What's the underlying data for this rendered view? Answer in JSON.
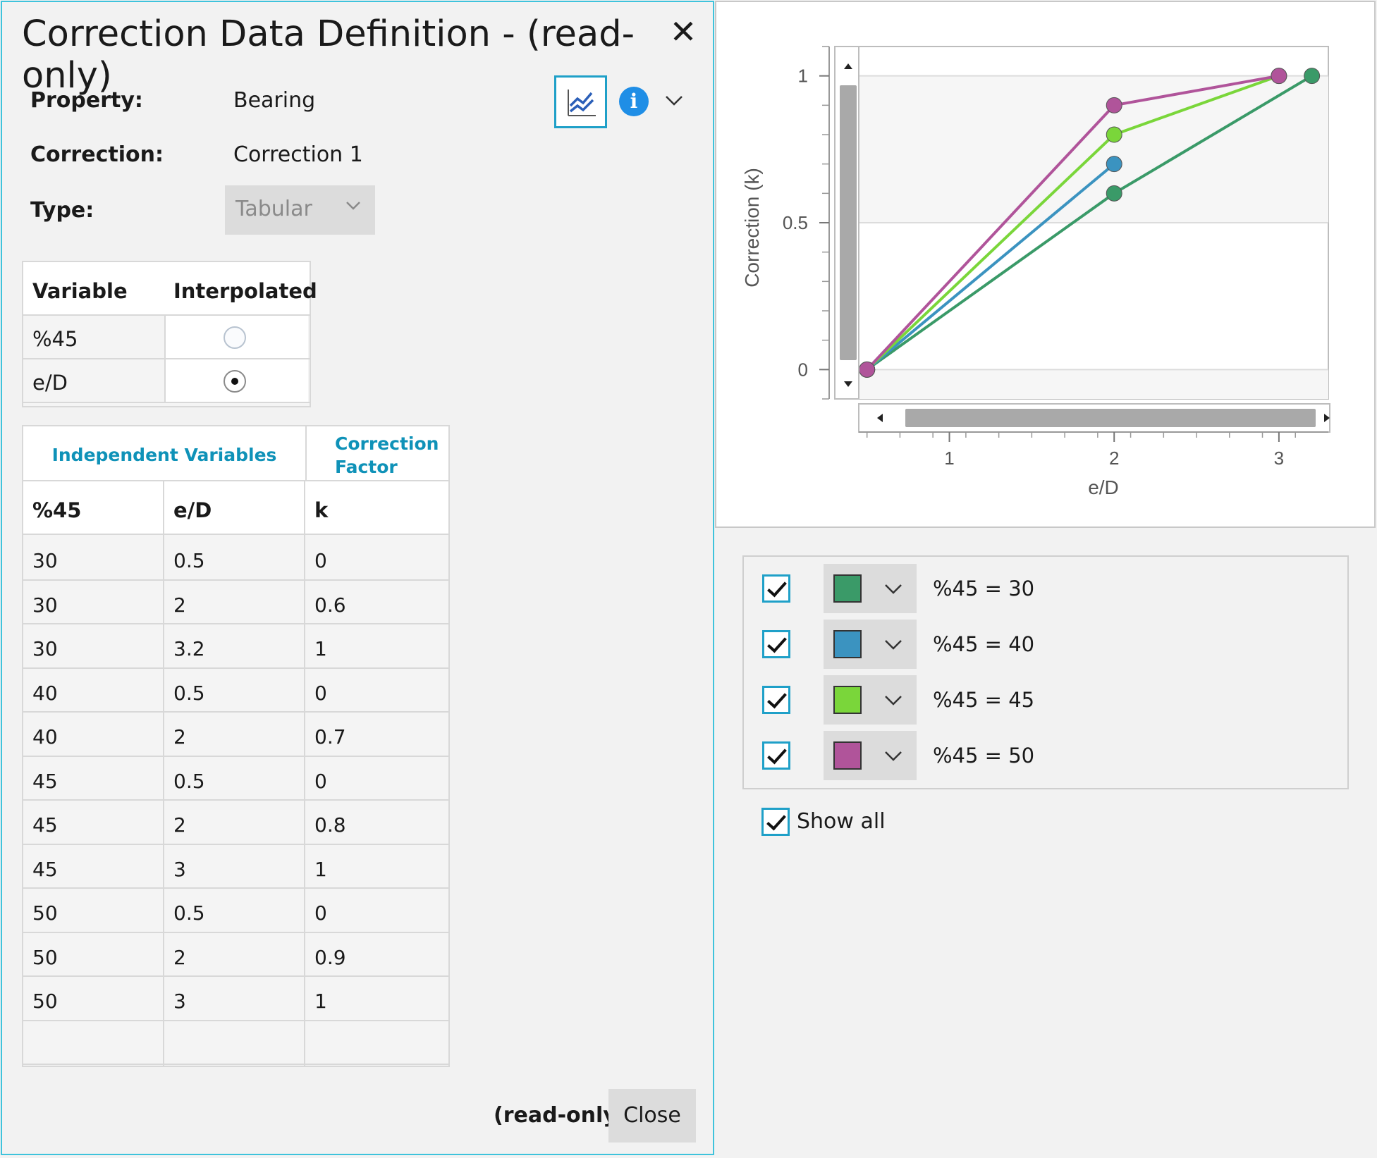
{
  "dialog": {
    "title": "Correction Data Definition - (read-only)",
    "close_glyph": "✕",
    "property_label": "Property:",
    "property_value": "Bearing",
    "correction_label": "Correction:",
    "correction_value": "Correction 1",
    "type_label": "Type:",
    "type_value": "Tabular",
    "info_glyph": "i"
  },
  "variables": {
    "headers": [
      "Variable",
      "Interpolated"
    ],
    "rows": [
      {
        "name": "%45",
        "interpolated": false
      },
      {
        "name": "e/D",
        "interpolated": true
      }
    ]
  },
  "data_table": {
    "group_independent": "Independent Variables",
    "group_factor_line1": "Correction",
    "group_factor_line2": "Factor",
    "columns": [
      "%45",
      "e/D",
      "k"
    ],
    "rows": [
      [
        "30",
        "0.5",
        "0"
      ],
      [
        "30",
        "2",
        "0.6"
      ],
      [
        "30",
        "3.2",
        "1"
      ],
      [
        "40",
        "0.5",
        "0"
      ],
      [
        "40",
        "2",
        "0.7"
      ],
      [
        "45",
        "0.5",
        "0"
      ],
      [
        "45",
        "2",
        "0.8"
      ],
      [
        "45",
        "3",
        "1"
      ],
      [
        "50",
        "0.5",
        "0"
      ],
      [
        "50",
        "2",
        "0.9"
      ],
      [
        "50",
        "3",
        "1"
      ],
      [
        "",
        "",
        ""
      ]
    ]
  },
  "footer": {
    "readonly_label": "(read-only)",
    "close_label": "Close"
  },
  "chart_data": {
    "type": "line",
    "xlabel": "e/D",
    "ylabel": "Correction (k)",
    "xlim": [
      0.45,
      3.3
    ],
    "ylim": [
      -0.1,
      1.1
    ],
    "xticks": [
      "1",
      "2",
      "3"
    ],
    "yticks": [
      "0",
      "0.5",
      "1"
    ],
    "grid": true,
    "series": [
      {
        "name": "%45 = 30",
        "color": "#3a9a68",
        "x": [
          0.5,
          2,
          3.2
        ],
        "y": [
          0,
          0.6,
          1
        ]
      },
      {
        "name": "%45 = 40",
        "color": "#3b93c0",
        "x": [
          0.5,
          2
        ],
        "y": [
          0,
          0.7
        ]
      },
      {
        "name": "%45 = 45",
        "color": "#7ad63a",
        "x": [
          0.5,
          2,
          3
        ],
        "y": [
          0,
          0.8,
          1
        ]
      },
      {
        "name": "%45 = 50",
        "color": "#b0549a",
        "x": [
          0.5,
          2,
          3
        ],
        "y": [
          0,
          0.9,
          1
        ]
      }
    ]
  },
  "legend": {
    "items": [
      {
        "label": "%45 = 30",
        "color": "#3a9a68",
        "checked": true
      },
      {
        "label": "%45 = 40",
        "color": "#3b93c0",
        "checked": true
      },
      {
        "label": "%45 = 45",
        "color": "#7ad63a",
        "checked": true
      },
      {
        "label": "%45 = 50",
        "color": "#b0549a",
        "checked": true
      }
    ],
    "show_all_label": "Show all"
  },
  "icons": {
    "chart_button": "line-chart-icon",
    "info": "info-icon",
    "close": "close-icon"
  }
}
